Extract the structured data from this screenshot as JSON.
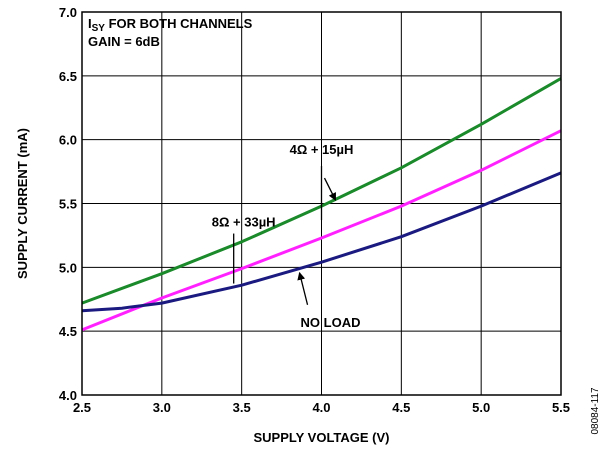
{
  "chart_data": {
    "type": "line",
    "xlabel": "SUPPLY VOLTAGE (V)",
    "ylabel": "SUPPLY CURRENT (mA)",
    "xlim": [
      2.5,
      5.5
    ],
    "ylim": [
      4.0,
      7.0
    ],
    "xticks": [
      "2.5",
      "3.0",
      "3.5",
      "4.0",
      "4.5",
      "5.0",
      "5.5"
    ],
    "yticks": [
      "4.0",
      "4.5",
      "5.0",
      "5.5",
      "6.0",
      "6.5",
      "7.0"
    ],
    "grid": true,
    "legend": "none",
    "title_box": {
      "line1_main": "I",
      "line1_sub": "SY",
      "line1_rest": " FOR BOTH CHANNELS",
      "line2": "GAIN = 6dB"
    },
    "figure_id": "08084-117",
    "series": [
      {
        "name": "4Ω + 15µH",
        "color": "#1a8a2a",
        "x": [
          2.5,
          3.0,
          3.5,
          4.0,
          4.5,
          5.0,
          5.5
        ],
        "y": [
          4.72,
          4.95,
          5.2,
          5.48,
          5.78,
          6.12,
          6.48
        ]
      },
      {
        "name": "8Ω + 33µH",
        "color": "#ff22ff",
        "x": [
          2.5,
          3.0,
          3.5,
          4.0,
          4.5,
          5.0,
          5.5
        ],
        "y": [
          4.51,
          4.76,
          4.99,
          5.23,
          5.48,
          5.76,
          6.07
        ]
      },
      {
        "name": "NO LOAD",
        "color": "#1a1a80",
        "x": [
          2.5,
          2.75,
          3.0,
          3.5,
          4.0,
          4.5,
          5.0,
          5.5
        ],
        "y": [
          4.66,
          4.68,
          4.72,
          4.86,
          5.04,
          5.24,
          5.48,
          5.74
        ]
      }
    ],
    "annotations": [
      {
        "text": "4Ω + 15µH",
        "series": 0,
        "at_x": 4.0
      },
      {
        "text": "8Ω + 33µH",
        "series": 1,
        "at_x": 3.45
      },
      {
        "text": "NO LOAD",
        "series": 2,
        "at_x": 3.9
      }
    ]
  }
}
